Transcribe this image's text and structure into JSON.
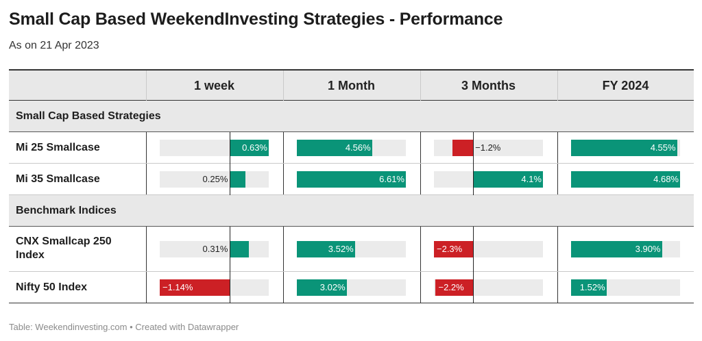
{
  "title": "Small Cap Based WeekendInvesting Strategies - Performance",
  "subtitle": "As on 21 Apr 2023",
  "footer": "Table: Weekendinvesting.com • Created with Datawrapper",
  "colors": {
    "positive": "#0a9478",
    "negative": "#cc2025",
    "track": "#ebebeb",
    "header_bg": "#e8e8e8"
  },
  "columns": [
    "1 week",
    "1 Month",
    "3 Months",
    "FY 2024"
  ],
  "groups": [
    {
      "label": "Small Cap Based Strategies",
      "rows": [
        {
          "label": "Mi 25 Smallcase",
          "values": [
            0.63,
            4.56,
            -1.2,
            4.55
          ],
          "display": [
            "0.63%",
            "4.56%",
            "−1.2%",
            "4.55%"
          ]
        },
        {
          "label": "Mi 35 Smallcase",
          "values": [
            0.25,
            6.61,
            4.1,
            4.68
          ],
          "display": [
            "0.25%",
            "6.61%",
            "4.1%",
            "4.68%"
          ]
        }
      ]
    },
    {
      "label": "Benchmark Indices",
      "rows": [
        {
          "label": "CNX Smallcap 250 Index",
          "values": [
            0.31,
            3.52,
            -2.3,
            3.9
          ],
          "display": [
            "0.31%",
            "3.52%",
            "−2.3%",
            "3.90%"
          ]
        },
        {
          "label": "Nifty 50 Index",
          "values": [
            -1.14,
            3.02,
            -2.2,
            1.52
          ],
          "display": [
            "−1.14%",
            "3.02%",
            "−2.2%",
            "1.52%"
          ]
        }
      ]
    }
  ],
  "chart_data": {
    "type": "table",
    "title": "Small Cap Based WeekendInvesting Strategies - Performance",
    "subtitle": "As on 21 Apr 2023",
    "categories": [
      "Mi 25 Smallcase",
      "Mi 35 Smallcase",
      "CNX Smallcap 250 Index",
      "Nifty 50 Index"
    ],
    "series": [
      {
        "name": "1 week",
        "values": [
          0.63,
          0.25,
          0.31,
          -1.14
        ]
      },
      {
        "name": "1 Month",
        "values": [
          4.56,
          6.61,
          3.52,
          3.02
        ]
      },
      {
        "name": "3 Months",
        "values": [
          -1.2,
          4.1,
          -2.3,
          -2.2
        ]
      },
      {
        "name": "FY 2024",
        "values": [
          4.55,
          4.68,
          3.9,
          1.52
        ]
      }
    ],
    "ranges": [
      [
        -1.14,
        0.63
      ],
      [
        0,
        6.61
      ],
      [
        -2.3,
        4.1
      ],
      [
        0,
        4.68
      ]
    ]
  }
}
